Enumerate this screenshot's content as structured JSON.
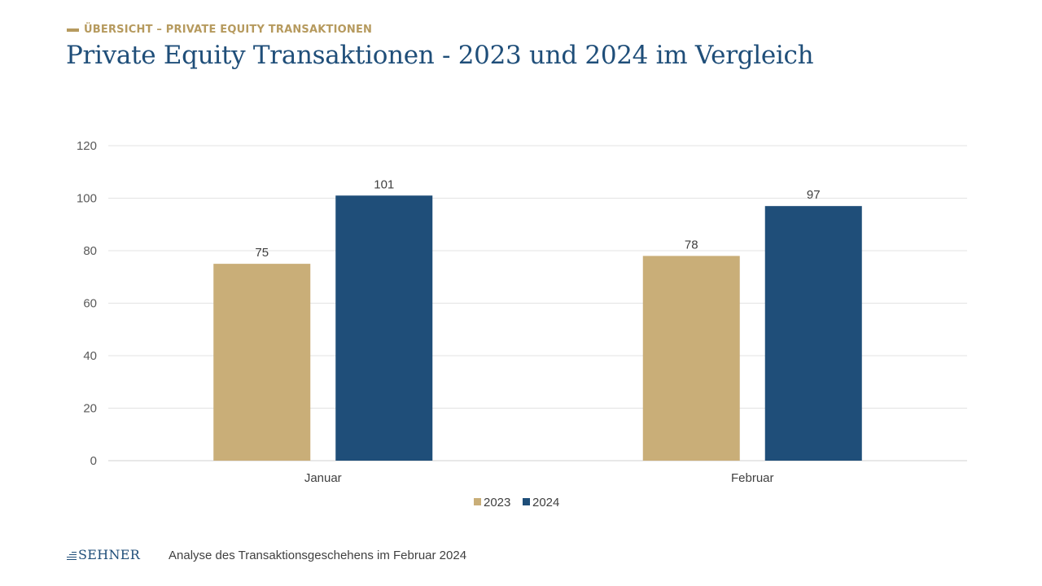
{
  "header": {
    "kicker": "ÜBERSICHT – PRIVATE EQUITY TRANSAKTIONEN",
    "title": "Private Equity Transaktionen - 2023 und 2024 im Vergleich"
  },
  "footer": {
    "logo_text": "SEHNER",
    "caption": "Analyse des Transaktionsgeschehens im Februar 2024"
  },
  "colors": {
    "gold": "#c9ae78",
    "navy": "#1f4e79",
    "accent_text": "#b69a5e"
  },
  "chart_data": {
    "type": "bar",
    "categories": [
      "Januar",
      "Februar"
    ],
    "series": [
      {
        "name": "2023",
        "values": [
          75,
          78
        ],
        "color": "#c9ae78"
      },
      {
        "name": "2024",
        "values": [
          101,
          97
        ],
        "color": "#1f4e79"
      }
    ],
    "title": "",
    "xlabel": "",
    "ylabel": "",
    "ylim": [
      0,
      120
    ],
    "yticks": [
      0,
      20,
      40,
      60,
      80,
      100,
      120
    ],
    "grid": true,
    "legend": "bottom-center",
    "data_labels": true
  }
}
